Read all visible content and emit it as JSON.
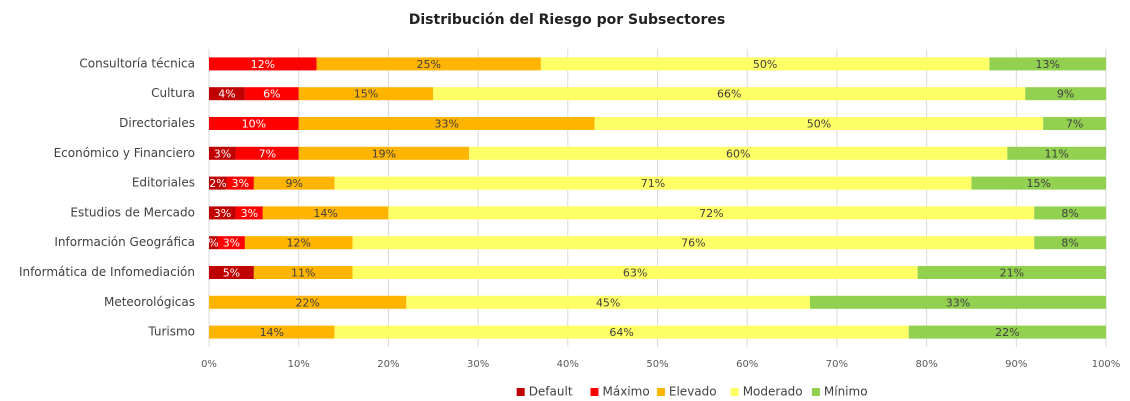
{
  "chart_data": {
    "type": "stacked_bar_horizontal",
    "title": "Distribución del Riesgo por Subsectores",
    "categories": [
      "Consultoría técnica",
      "Cultura",
      "Directoriales",
      "Económico y Financiero",
      "Editoriales",
      "Estudios de Mercado",
      "Información Geográfica",
      "Informática de Infomediación",
      "Meteorológicas",
      "Turismo"
    ],
    "series": [
      {
        "name": "Default",
        "color": "#c00000",
        "values": [
          0,
          4,
          0,
          3,
          2,
          3,
          1,
          5,
          0,
          0
        ],
        "value_labels": [
          null,
          "4%",
          null,
          "3%",
          "2%",
          "3%",
          "%",
          "5%",
          null,
          null
        ]
      },
      {
        "name": "Máximo",
        "color": "#ff0000",
        "values": [
          12,
          6,
          10,
          7,
          3,
          3,
          3,
          0,
          0,
          0
        ],
        "value_labels": [
          "12%",
          "6%",
          "10%",
          "7%",
          "3%",
          "3%",
          "3%",
          null,
          null,
          null
        ]
      },
      {
        "name": "Elevado",
        "color": "#ffb400",
        "values": [
          25,
          15,
          33,
          19,
          9,
          14,
          12,
          11,
          22,
          14
        ],
        "value_labels": [
          "25%",
          "15%",
          "33%",
          "19%",
          "9%",
          "14%",
          "12%",
          "11%",
          "22%",
          "14%"
        ]
      },
      {
        "name": "Moderado",
        "color": "#ffff66",
        "values": [
          50,
          66,
          50,
          60,
          71,
          72,
          76,
          63,
          45,
          64
        ],
        "value_labels": [
          "50%",
          "66%",
          "50%",
          "60%",
          "71%",
          "72%",
          "76%",
          "63%",
          "45%",
          "64%"
        ]
      },
      {
        "name": "Mínimo",
        "color": "#92d050",
        "values": [
          13,
          9,
          7,
          11,
          15,
          8,
          8,
          21,
          33,
          22
        ],
        "value_labels": [
          "13%",
          "9%",
          "7%",
          "11%",
          "15%",
          "8%",
          "8%",
          "21%",
          "33%",
          "22%"
        ]
      }
    ],
    "xlim": [
      0,
      100
    ],
    "xticks": [
      {
        "value": 0,
        "label": "0%"
      },
      {
        "value": 10,
        "label": "10%"
      },
      {
        "value": 20,
        "label": "20%"
      },
      {
        "value": 30,
        "label": "30%"
      },
      {
        "value": 40,
        "label": "40%"
      },
      {
        "value": 50,
        "label": "50%"
      },
      {
        "value": 60,
        "label": "60%"
      },
      {
        "value": 70,
        "label": "70%"
      },
      {
        "value": 80,
        "label": "80%"
      },
      {
        "value": 90,
        "label": "90%"
      },
      {
        "value": 100,
        "label": "100%"
      }
    ],
    "grid": true,
    "legend": "bottom"
  }
}
